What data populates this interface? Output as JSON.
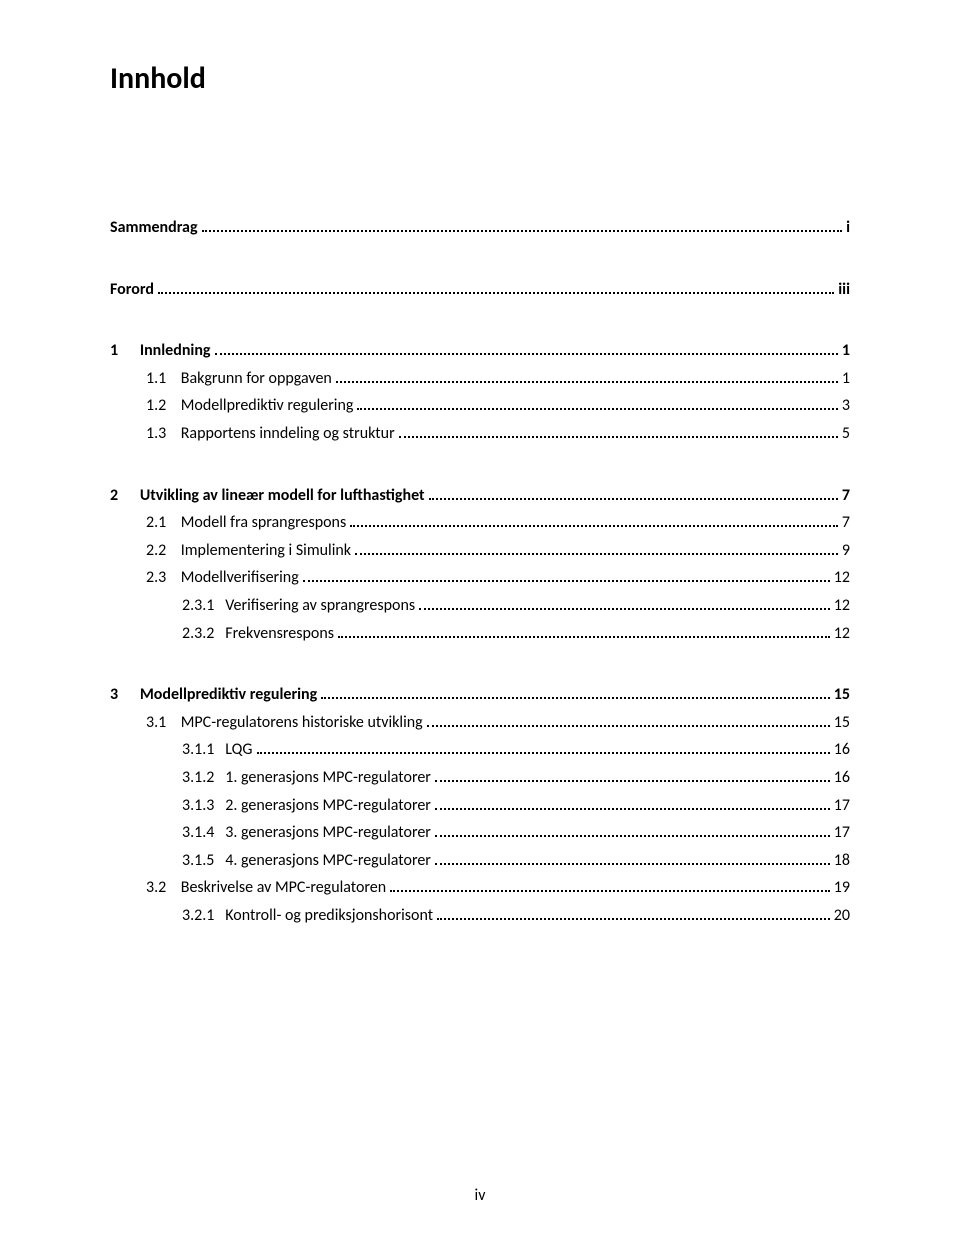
{
  "title": "Innhold",
  "page_number": "iv",
  "entries": [
    {
      "indent": 0,
      "num": "",
      "label": "Sammendrag",
      "page": "i",
      "bold": true,
      "gap": "none"
    },
    {
      "indent": 0,
      "num": "",
      "label": "Forord",
      "page": "iii",
      "bold": true,
      "gap": "section"
    },
    {
      "indent": 0,
      "num": "1",
      "label": "Innledning",
      "page": "1",
      "bold": true,
      "gap": "section"
    },
    {
      "indent": 1,
      "num": "1.1",
      "label": "Bakgrunn for oppgaven",
      "page": "1",
      "bold": false,
      "gap": "none"
    },
    {
      "indent": 1,
      "num": "1.2",
      "label": "Modellprediktiv regulering",
      "page": "3",
      "bold": false,
      "gap": "none"
    },
    {
      "indent": 1,
      "num": "1.3",
      "label": "Rapportens inndeling og struktur",
      "page": "5",
      "bold": false,
      "gap": "none"
    },
    {
      "indent": 0,
      "num": "2",
      "label": "Utvikling av lineær modell for lufthastighet",
      "page": "7",
      "bold": true,
      "gap": "section"
    },
    {
      "indent": 1,
      "num": "2.1",
      "label": "Modell fra sprangrespons",
      "page": "7",
      "bold": false,
      "gap": "none"
    },
    {
      "indent": 1,
      "num": "2.2",
      "label": "Implementering i Simulink",
      "page": "9",
      "bold": false,
      "gap": "none"
    },
    {
      "indent": 1,
      "num": "2.3",
      "label": "Modellverifisering",
      "page": "12",
      "bold": false,
      "gap": "none"
    },
    {
      "indent": 2,
      "num": "2.3.1",
      "label": "Verifisering av sprangrespons",
      "page": "12",
      "bold": false,
      "gap": "none"
    },
    {
      "indent": 2,
      "num": "2.3.2",
      "label": "Frekvensrespons",
      "page": "12",
      "bold": false,
      "gap": "none"
    },
    {
      "indent": 0,
      "num": "3",
      "label": "Modellprediktiv regulering",
      "page": "15",
      "bold": true,
      "gap": "section"
    },
    {
      "indent": 1,
      "num": "3.1",
      "label": "MPC-regulatorens historiske utvikling",
      "page": "15",
      "bold": false,
      "gap": "none"
    },
    {
      "indent": 2,
      "num": "3.1.1",
      "label": "LQG",
      "page": "16",
      "bold": false,
      "gap": "none"
    },
    {
      "indent": 2,
      "num": "3.1.2",
      "label": "1. generasjons MPC-regulatorer",
      "page": "16",
      "bold": false,
      "gap": "none"
    },
    {
      "indent": 2,
      "num": "3.1.3",
      "label": "2. generasjons MPC-regulatorer",
      "page": "17",
      "bold": false,
      "gap": "none"
    },
    {
      "indent": 2,
      "num": "3.1.4",
      "label": "3. generasjons MPC-regulatorer",
      "page": "17",
      "bold": false,
      "gap": "none"
    },
    {
      "indent": 2,
      "num": "3.1.5",
      "label": "4. generasjons MPC-regulatorer",
      "page": "18",
      "bold": false,
      "gap": "none"
    },
    {
      "indent": 1,
      "num": "3.2",
      "label": "Beskrivelse av MPC-regulatoren",
      "page": "19",
      "bold": false,
      "gap": "none"
    },
    {
      "indent": 2,
      "num": "3.2.1",
      "label": "Kontroll- og prediksjonshorisont",
      "page": "20",
      "bold": false,
      "gap": "none"
    }
  ]
}
